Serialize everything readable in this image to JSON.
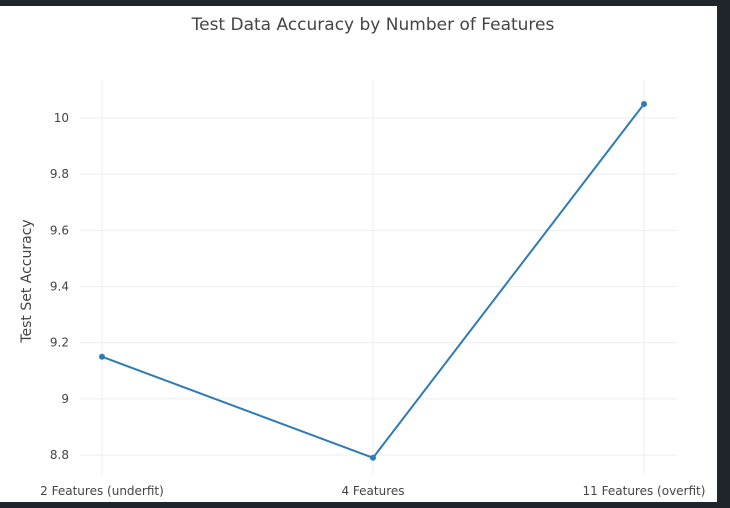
{
  "chart_data": {
    "type": "line",
    "title": "Test Data Accuracy by Number of Features",
    "xlabel": "",
    "ylabel": "Test Set Accuracy",
    "categories": [
      "2 Features (underfit)",
      "4 Features",
      "11 Features (overfit)"
    ],
    "series": [
      {
        "name": "",
        "values": [
          9.15,
          8.79,
          10.05
        ]
      }
    ],
    "yticks": [
      "8.8",
      "9",
      "9.2",
      "9.4",
      "9.6",
      "9.8",
      "10"
    ],
    "ylim": [
      8.75,
      10.1
    ],
    "grid": true,
    "legend": "none",
    "colors": {
      "line": "#2c7bb6",
      "grid": "#eeeeee",
      "text": "#444444",
      "background": "#ffffff"
    }
  }
}
